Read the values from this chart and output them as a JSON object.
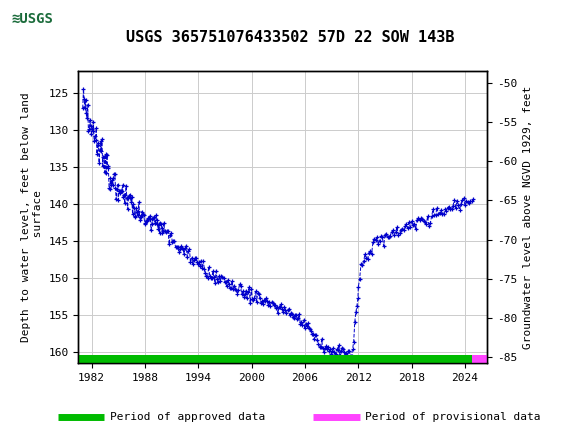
{
  "title": "USGS 365751076433502 57D 22 SOW 143B",
  "ylabel_left": "Depth to water level, feet below land\n surface",
  "ylabel_right": "Groundwater level above NGVD 1929, feet",
  "xlim": [
    1980.5,
    2026.5
  ],
  "ylim_left": [
    161.5,
    122.0
  ],
  "ylim_right": [
    -85.75,
    -48.5
  ],
  "xticks": [
    1982,
    1988,
    1994,
    2000,
    2006,
    2012,
    2018,
    2024
  ],
  "yticks_left": [
    125,
    130,
    135,
    140,
    145,
    150,
    155,
    160
  ],
  "yticks_right": [
    -50,
    -55,
    -60,
    -65,
    -70,
    -75,
    -80,
    -85
  ],
  "line_color": "#0000CC",
  "marker": "+",
  "linestyle": "--",
  "header_color": "#1a6b3a",
  "legend_approved_color": "#00bb00",
  "legend_provisional_color": "#ff44ff",
  "background_color": "#ffffff",
  "grid_color": "#cccccc",
  "title_fontsize": 11,
  "axis_fontsize": 8,
  "ylabel_fontsize": 8
}
